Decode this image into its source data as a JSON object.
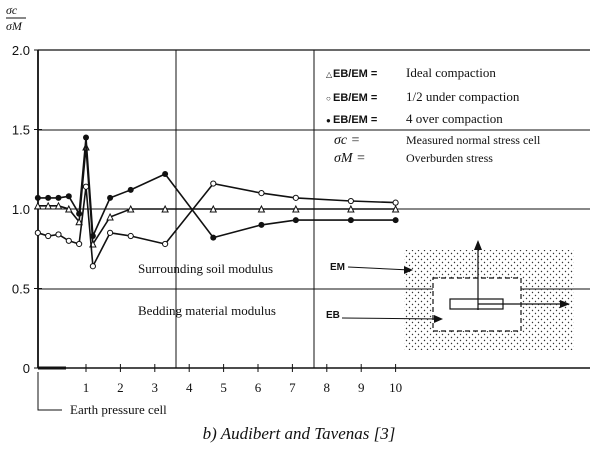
{
  "chart_data": {
    "type": "line",
    "ylabel_num": "σc",
    "ylabel_den": "σM",
    "x_ticks": [
      "1",
      "2",
      "3",
      "4",
      "5",
      "6",
      "7",
      "8",
      "9",
      "10"
    ],
    "y_ticks": [
      "0",
      "0.5",
      "1.0",
      "1.5",
      "2.0"
    ],
    "xlim": [
      -0.5,
      10.4
    ],
    "ylim": [
      0,
      2.0
    ],
    "grid": "partial",
    "series": [
      {
        "name": "Ideal compaction",
        "marker": "triangle",
        "x": [
          -0.4,
          -0.1,
          0.2,
          0.5,
          0.8,
          1.0,
          1.2,
          1.7,
          2.3,
          3.3,
          4.7,
          6.1,
          7.1,
          8.7,
          10.0
        ],
        "y": [
          1.02,
          1.02,
          1.02,
          1.0,
          0.92,
          1.39,
          0.78,
          0.95,
          1.0,
          1.0,
          1.0,
          1.0,
          1.0,
          1.0,
          1.0
        ]
      },
      {
        "name": "1/2 under compaction",
        "marker": "open-circle",
        "x": [
          -0.4,
          -0.1,
          0.2,
          0.5,
          0.8,
          1.0,
          1.2,
          1.7,
          2.3,
          3.3,
          4.7,
          6.1,
          7.1,
          8.7,
          10.0
        ],
        "y": [
          0.85,
          0.83,
          0.84,
          0.8,
          0.78,
          1.14,
          0.64,
          0.85,
          0.83,
          0.78,
          1.16,
          1.1,
          1.07,
          1.05,
          1.04
        ]
      },
      {
        "name": "4 over compaction",
        "marker": "filled-circle",
        "x": [
          -0.4,
          -0.1,
          0.2,
          0.5,
          0.8,
          1.0,
          1.2,
          1.7,
          2.3,
          3.3,
          4.7,
          6.1,
          7.1,
          8.7,
          10.0
        ],
        "y": [
          1.07,
          1.07,
          1.07,
          1.08,
          0.97,
          1.45,
          0.83,
          1.07,
          1.12,
          1.22,
          0.82,
          0.9,
          0.93,
          0.93,
          0.93
        ]
      }
    ],
    "legend": {
      "rows": [
        {
          "symbol": "△",
          "lhs": "EB/EM =",
          "rhs": "Ideal compaction"
        },
        {
          "symbol": "○",
          "lhs": "EB/EM =",
          "rhs": "1/2 under compaction"
        },
        {
          "symbol": "●",
          "lhs": "EB/EM =",
          "rhs": "4 over compaction"
        },
        {
          "symbol": "",
          "lhs": "σc =",
          "rhs": "Measured normal stress cell"
        },
        {
          "symbol": "",
          "lhs": "σM =",
          "rhs": "Overburden stress"
        }
      ],
      "placement": "top-right"
    },
    "annotations": {
      "surrounding": "Surrounding soil modulus",
      "bedding": "Bedding material modulus",
      "em": "EM",
      "eb": "EB",
      "cell": "Earth pressure cell"
    },
    "caption": "b) Audibert and Tavenas [3]"
  }
}
